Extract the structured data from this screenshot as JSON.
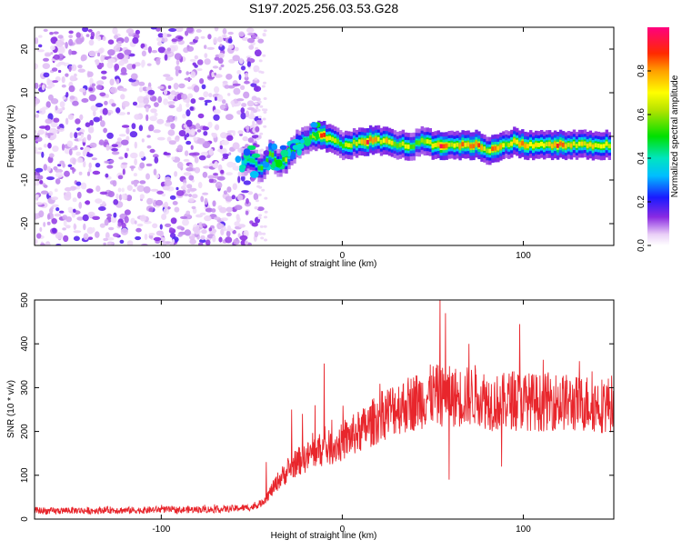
{
  "title": "S197.2025.256.03.53.G28",
  "chart_data": [
    {
      "type": "heatmap",
      "name": "spectrogram",
      "xlabel": "Height of straight line (km)",
      "ylabel": "Frequency (Hz)",
      "xlim": [
        -170,
        150
      ],
      "ylim": [
        -25,
        25
      ],
      "xticks": [
        -100,
        0,
        100
      ],
      "yticks": [
        -20,
        -10,
        0,
        10,
        20
      ],
      "colorbar": {
        "label": "Normalized spectral amplitude",
        "range": [
          0,
          1
        ],
        "ticks": [
          "0.0",
          "0.2",
          "0.4",
          "0.6",
          "0.8"
        ]
      },
      "ridge": {
        "description": "frequency ridge of strongest amplitude vs height",
        "x": [
          -55,
          -50,
          -45,
          -40,
          -35,
          -30,
          -25,
          -20,
          -15,
          -10,
          -5,
          0,
          5,
          10,
          15,
          20,
          25,
          30,
          35,
          40,
          45,
          50,
          55,
          60,
          65,
          70,
          75,
          80,
          85,
          90,
          95,
          100,
          105,
          110,
          115,
          120,
          125,
          130,
          135,
          140,
          145,
          148
        ],
        "y": [
          -6,
          -5,
          -8,
          -4,
          -6,
          -5,
          -2,
          -1,
          0,
          0,
          -1,
          -2,
          -2,
          -1,
          -1,
          -1,
          -1,
          -2,
          -2,
          -2,
          -1,
          -2,
          -2,
          -2,
          -2,
          -2,
          -2,
          -3,
          -3,
          -2,
          -1,
          -2,
          -2,
          -2,
          -2,
          -2,
          -2,
          -2,
          -2,
          -2,
          -2,
          -2
        ],
        "amplitude": [
          0.4,
          0.45,
          0.5,
          0.55,
          0.5,
          0.6,
          0.55,
          0.5,
          0.7,
          0.85,
          0.65,
          0.6,
          0.65,
          0.75,
          0.9,
          0.7,
          0.8,
          0.6,
          0.75,
          0.55,
          0.65,
          0.7,
          0.9,
          0.7,
          0.75,
          0.85,
          0.9,
          0.7,
          0.85,
          0.6,
          0.7,
          0.8,
          0.75,
          0.8,
          0.7,
          0.85,
          0.75,
          0.7,
          0.7,
          0.7,
          0.7,
          0.7
        ]
      },
      "noise_region": {
        "x_range": [
          -170,
          -45
        ],
        "amplitude_range": [
          0.0,
          0.15
        ]
      }
    },
    {
      "type": "line",
      "name": "snr",
      "xlabel": "Height of straight line (km)",
      "ylabel": "SNR (10 * v/v)",
      "xlim": [
        -170,
        150
      ],
      "ylim": [
        0,
        500
      ],
      "xticks": [
        -100,
        0,
        100
      ],
      "yticks": [
        0,
        100,
        200,
        300,
        400,
        500
      ],
      "color": "#e8262c",
      "series": [
        {
          "name": "SNR",
          "x": [
            -170,
            -160,
            -150,
            -140,
            -130,
            -120,
            -110,
            -100,
            -90,
            -80,
            -70,
            -60,
            -50,
            -45,
            -40,
            -35,
            -30,
            -25,
            -20,
            -15,
            -10,
            -5,
            0,
            5,
            10,
            15,
            20,
            25,
            30,
            35,
            40,
            45,
            50,
            55,
            60,
            65,
            70,
            75,
            80,
            85,
            90,
            95,
            100,
            105,
            110,
            115,
            120,
            125,
            130,
            135,
            140,
            145,
            150
          ],
          "values": [
            20,
            18,
            20,
            19,
            21,
            20,
            20,
            22,
            21,
            22,
            22,
            24,
            27,
            35,
            60,
            90,
            110,
            130,
            140,
            155,
            160,
            165,
            175,
            190,
            200,
            215,
            230,
            245,
            255,
            260,
            268,
            275,
            285,
            280,
            280,
            278,
            280,
            285,
            270,
            265,
            268,
            275,
            270,
            268,
            265,
            270,
            268,
            265,
            262,
            265,
            262,
            260,
            265
          ]
        }
      ],
      "spikes": [
        {
          "x": -42,
          "y": 130
        },
        {
          "x": -28,
          "y": 250
        },
        {
          "x": -22,
          "y": 240
        },
        {
          "x": -15,
          "y": 260
        },
        {
          "x": -10,
          "y": 355
        },
        {
          "x": 54,
          "y": 500
        },
        {
          "x": 57,
          "y": 470
        },
        {
          "x": 59,
          "y": 90
        },
        {
          "x": 70,
          "y": 400
        },
        {
          "x": 88,
          "y": 120
        },
        {
          "x": 98,
          "y": 445
        },
        {
          "x": 150,
          "y": 170
        }
      ]
    }
  ]
}
